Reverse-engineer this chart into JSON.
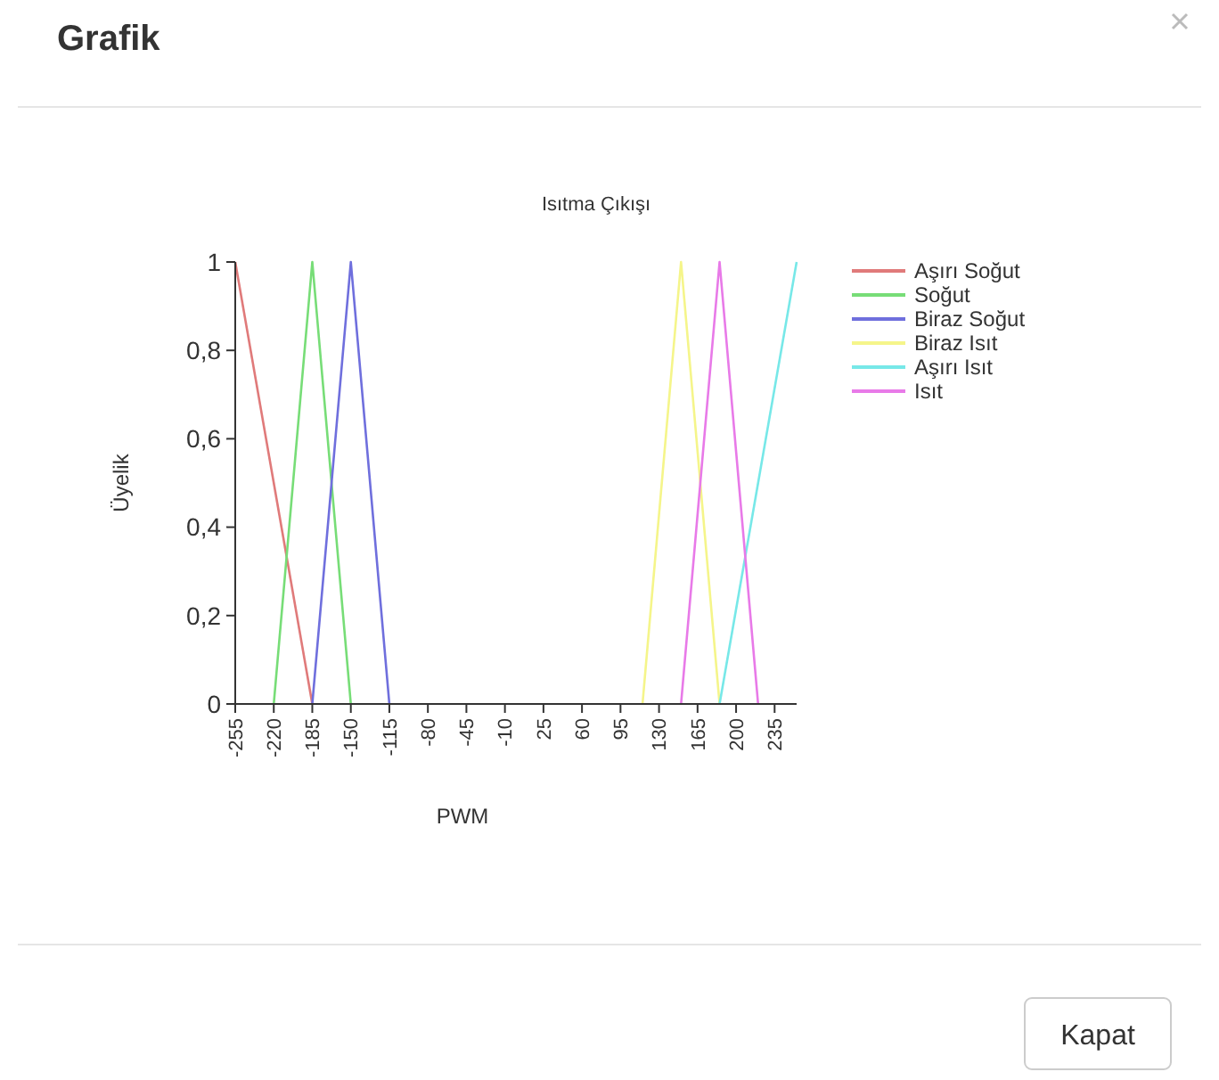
{
  "chart_data": {
    "type": "line",
    "title": "Isıtma Çıkışı",
    "xlabel": "PWM",
    "ylabel": "Üyelik",
    "annotations": [
      "Grafik",
      "Kapat"
    ],
    "xlim": [
      -255,
      255
    ],
    "xticks": [
      -255,
      -220,
      -185,
      -150,
      -115,
      -80,
      -45,
      -10,
      25,
      60,
      95,
      130,
      165,
      200,
      235
    ],
    "ylim": [
      0,
      1
    ],
    "yticks": [
      0,
      {
        "value": 0.2,
        "label": "0,2"
      },
      {
        "value": 0.4,
        "label": "0,4"
      },
      {
        "value": 0.6,
        "label": "0,6"
      },
      {
        "value": 0.8,
        "label": "0,8"
      },
      1
    ],
    "legend": "right",
    "grid": false,
    "series": [
      {
        "name": "Aşırı Soğut",
        "color": "#e07a7a",
        "x": [
          -255,
          -185
        ],
        "values": [
          1,
          0
        ]
      },
      {
        "name": "Soğut",
        "color": "#77dd77",
        "x": [
          -220,
          -185,
          -150
        ],
        "values": [
          0,
          1,
          0
        ]
      },
      {
        "name": "Biraz Soğut",
        "color": "#6f6fdd",
        "x": [
          -185,
          -150,
          -115
        ],
        "values": [
          0,
          1,
          0
        ]
      },
      {
        "name": "Biraz Isıt",
        "color": "#f5f58a",
        "x": [
          115,
          150,
          185
        ],
        "values": [
          0,
          1,
          0
        ]
      },
      {
        "name": "Aşırı Isıt",
        "color": "#77e8e8",
        "x": [
          185,
          255
        ],
        "values": [
          0,
          1
        ]
      },
      {
        "name": "Isıt",
        "color": "#e87ae8",
        "x": [
          150,
          185,
          220
        ],
        "values": [
          0,
          1,
          0
        ]
      }
    ]
  }
}
